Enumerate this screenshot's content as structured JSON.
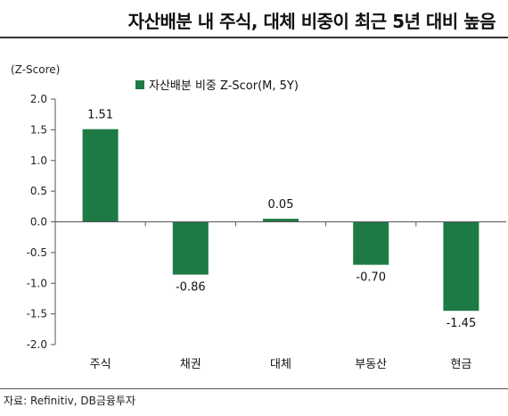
{
  "title": "자산배분 내 주식, 대체 비중이 최근 5년 대비 높음",
  "source": "자료: Refinitiv, DB금융투자",
  "colors": {
    "bar": "#1e7a45",
    "axis": "#555555",
    "text": "#222222"
  },
  "chart_data": {
    "type": "bar",
    "unit_label": "(Z-Score)",
    "categories": [
      "주식",
      "채권",
      "대체",
      "부동산",
      "현금"
    ],
    "series": [
      {
        "name": "자산배분 비중 Z-Scor(M, 5Y)",
        "values": [
          1.51,
          -0.86,
          0.05,
          -0.7,
          -1.45
        ]
      }
    ],
    "data_labels": [
      "1.51",
      "-0.86",
      "0.05",
      "-0.70",
      "-1.45"
    ],
    "ylim": [
      -2.0,
      2.0
    ],
    "yticks": [
      "2.0",
      "1.5",
      "1.0",
      "0.5",
      "0.0",
      "-0.5",
      "-1.0",
      "-1.5",
      "-2.0"
    ],
    "ytick_values": [
      2.0,
      1.5,
      1.0,
      0.5,
      0.0,
      -0.5,
      -1.0,
      -1.5,
      -2.0
    ],
    "legend_position": "top-center",
    "grid": false
  }
}
